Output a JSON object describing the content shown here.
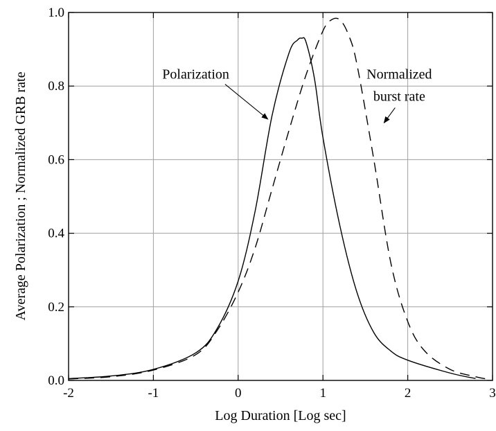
{
  "chart_data": {
    "type": "line",
    "xlabel": "Log Duration [Log sec]",
    "ylabel": "Average Polarization ; Normalized GRB rate",
    "xlim": [
      -2,
      3
    ],
    "ylim": [
      0,
      1
    ],
    "grid": true,
    "x_ticks": [
      "-2",
      "-1",
      "0",
      "1",
      "2",
      "3"
    ],
    "y_ticks": [
      "0.0",
      "0.2",
      "0.4",
      "0.6",
      "0.8",
      "1.0"
    ],
    "series": [
      {
        "style": "solid",
        "x": [
          -2.0,
          -1.5,
          -1.0,
          -0.5,
          -0.25,
          0.0,
          0.2,
          0.4,
          0.6,
          0.7,
          0.75,
          0.8,
          0.9,
          1.0,
          1.2,
          1.4,
          1.6,
          1.8,
          2.0,
          2.5,
          2.8
        ],
        "y": [
          0.005,
          0.012,
          0.03,
          0.075,
          0.14,
          0.27,
          0.46,
          0.72,
          0.89,
          0.925,
          0.93,
          0.92,
          0.82,
          0.66,
          0.42,
          0.24,
          0.13,
          0.08,
          0.055,
          0.02,
          0.005
        ]
      },
      {
        "style": "dashed",
        "x": [
          -2.0,
          -1.5,
          -1.0,
          -0.5,
          -0.25,
          0.0,
          0.2,
          0.4,
          0.6,
          0.8,
          1.0,
          1.1,
          1.2,
          1.3,
          1.4,
          1.6,
          1.8,
          2.0,
          2.2,
          2.5,
          2.8,
          2.95
        ],
        "y": [
          0.004,
          0.01,
          0.028,
          0.07,
          0.135,
          0.24,
          0.36,
          0.52,
          0.68,
          0.83,
          0.95,
          0.98,
          0.98,
          0.94,
          0.86,
          0.6,
          0.32,
          0.16,
          0.08,
          0.03,
          0.01,
          0.003
        ]
      }
    ],
    "annotations": [
      {
        "text": "Polarization",
        "x_text": -0.5,
        "y_text": 0.82,
        "x_arrow": 0.35,
        "y_arrow": 0.71
      },
      {
        "text": "Normalized",
        "x_text": 1.9,
        "y_text": 0.82,
        "x_arrow": null,
        "y_arrow": null
      },
      {
        "text": "burst rate",
        "x_text": 1.9,
        "y_text": 0.76,
        "x_arrow": 1.72,
        "y_arrow": 0.7
      }
    ]
  }
}
